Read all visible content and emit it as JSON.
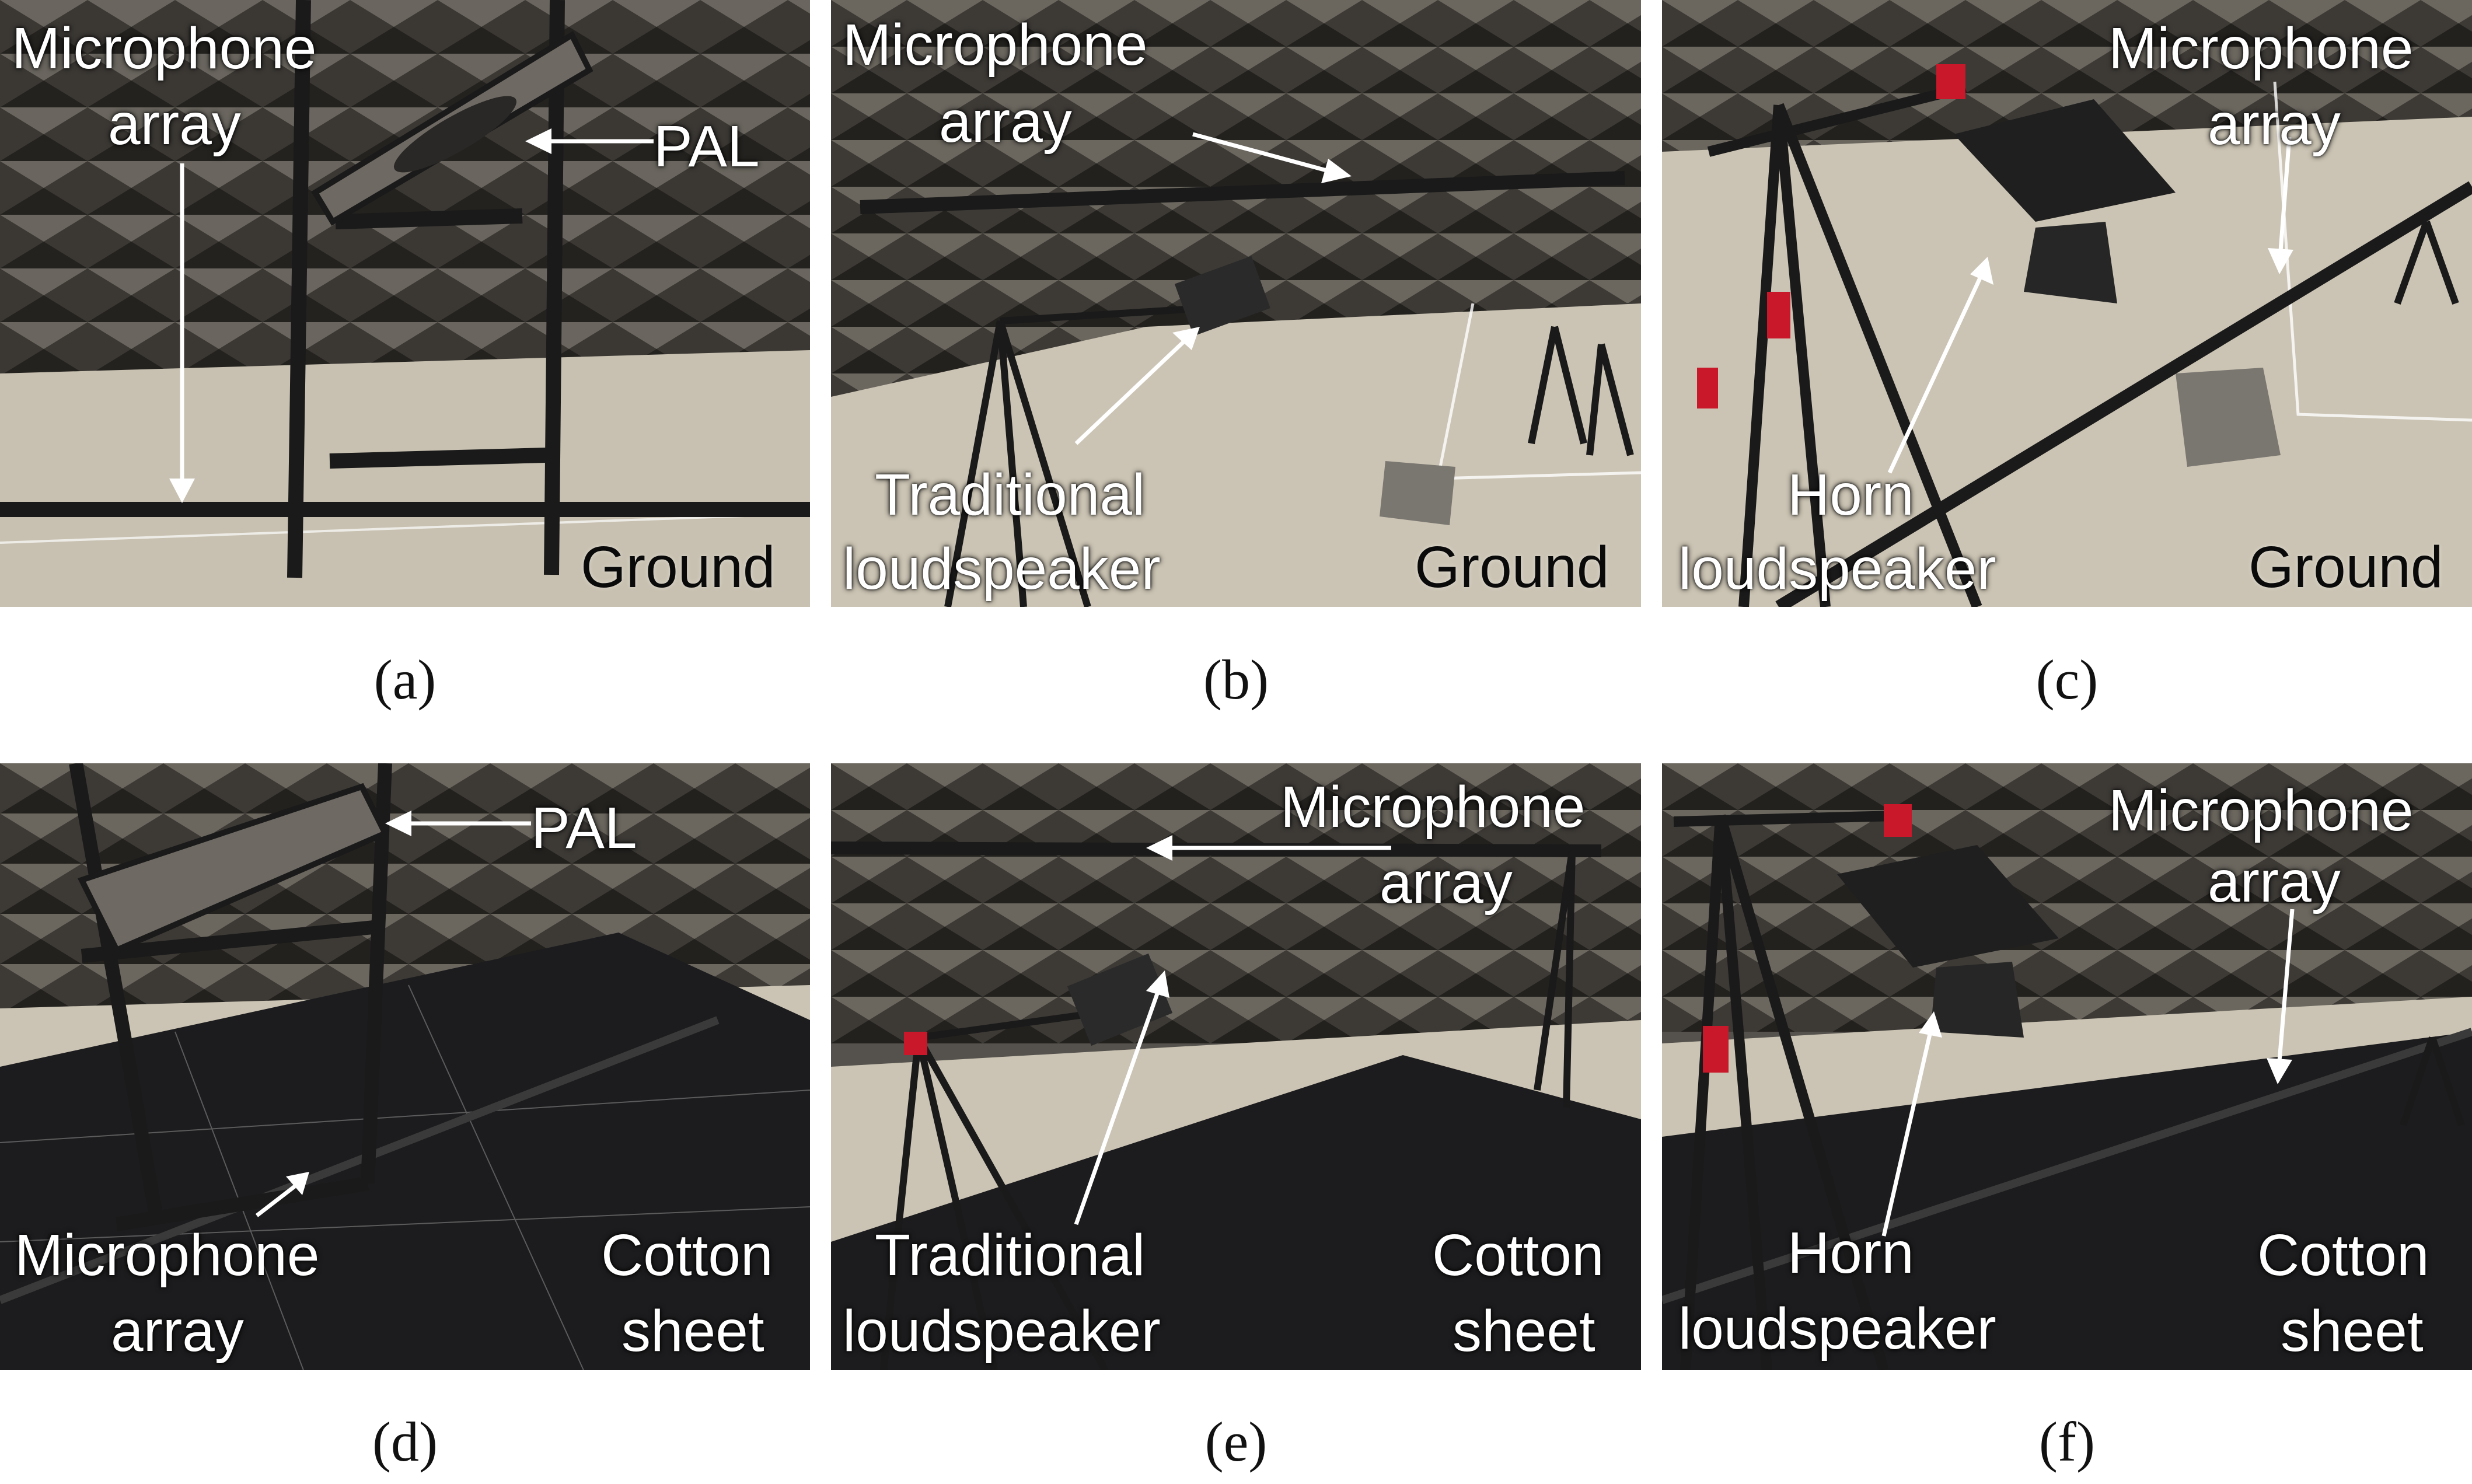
{
  "captions": [
    "(a)",
    "(b)",
    "(c)",
    "(d)",
    "(e)",
    "(f)"
  ],
  "panels": {
    "a": {
      "mic_line1": "Microphone",
      "mic_line2": "array",
      "pal": "PAL",
      "surface": "Ground"
    },
    "b": {
      "mic_line1": "Microphone",
      "mic_line2": "array",
      "spk_line1": "Traditional",
      "spk_line2": "loudspeaker",
      "surface": "Ground"
    },
    "c": {
      "mic_line1": "Microphone",
      "mic_line2": "array",
      "spk_line1": "Horn",
      "spk_line2": "loudspeaker",
      "surface": "Ground"
    },
    "d": {
      "pal": "PAL",
      "mic_line1": "Microphone",
      "mic_line2": "array",
      "surface_line1": "Cotton",
      "surface_line2": "sheet"
    },
    "e": {
      "mic_line1": "Microphone",
      "mic_line2": "array",
      "spk_line1": "Traditional",
      "spk_line2": "loudspeaker",
      "surface_line1": "Cotton",
      "surface_line2": "sheet"
    },
    "f": {
      "mic_line1": "Microphone",
      "mic_line2": "array",
      "spk_line1": "Horn",
      "spk_line2": "loudspeaker",
      "surface_line1": "Cotton",
      "surface_line2": "sheet"
    }
  },
  "colors": {
    "annotation_text": "#ffffff",
    "surface_label": "#0a0a0a",
    "wedge_wall": "#3f3c38",
    "floor": "#c9c2b2",
    "cotton_sheet": "#1c1c1e",
    "stand_red": "#c8182a"
  }
}
